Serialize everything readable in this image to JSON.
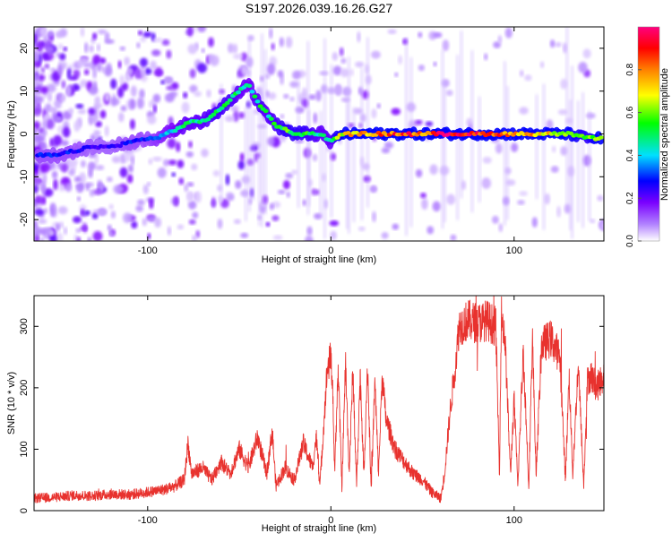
{
  "title": "S197.2026.039.16.26.G27",
  "chart_data": [
    {
      "type": "heatmap",
      "title": "S197.2026.039.16.26.G27",
      "xlabel": "Height of straight line (km)",
      "ylabel": "Frequency (Hz)",
      "xlim": [
        -162,
        149
      ],
      "ylim": [
        -25,
        25
      ],
      "xticks": [
        -100,
        0,
        100
      ],
      "yticks": [
        -20,
        -10,
        0,
        10,
        20
      ],
      "colorbar": {
        "label": "Normalized spectral amplitude",
        "range": [
          0,
          1
        ],
        "ticks": [
          0.0,
          0.2,
          0.4,
          0.6,
          0.8
        ],
        "tick_labels": [
          "0.0",
          "0.2",
          "0.4",
          "0.6",
          "0.8"
        ],
        "colors": [
          "#ffffff",
          "#7a00ff",
          "#0000ff",
          "#00e0ff",
          "#00ff00",
          "#ffff00",
          "#ff8000",
          "#ff0000",
          "#ff0080"
        ]
      },
      "ridge": {
        "x": [
          -160,
          -150,
          -140,
          -130,
          -120,
          -110,
          -100,
          -95,
          -90,
          -85,
          -80,
          -75,
          -70,
          -65,
          -60,
          -55,
          -50,
          -45,
          -42,
          -38,
          -35,
          -30,
          -25,
          -20,
          -15,
          -10,
          -5,
          0,
          5,
          10,
          20,
          30,
          40,
          50,
          60,
          70,
          80,
          90,
          100,
          110,
          120,
          130,
          140,
          148
        ],
        "y": [
          -5,
          -5,
          -4,
          -3,
          -3,
          -2,
          -1,
          -1,
          0,
          1,
          2,
          3,
          3,
          4,
          6,
          8,
          10,
          12,
          9,
          6,
          5,
          2,
          1,
          0,
          0,
          0,
          0,
          -2,
          0,
          0,
          0,
          0,
          0,
          0,
          0,
          0,
          0,
          0,
          0,
          0,
          0,
          0,
          -1,
          -1
        ],
        "amplitude": [
          0.3,
          0.3,
          0.3,
          0.25,
          0.25,
          0.3,
          0.3,
          0.35,
          0.4,
          0.45,
          0.5,
          0.5,
          0.5,
          0.55,
          0.55,
          0.55,
          0.5,
          0.45,
          0.5,
          0.55,
          0.5,
          0.55,
          0.6,
          0.6,
          0.6,
          0.55,
          0.5,
          0.5,
          0.7,
          0.8,
          0.85,
          0.9,
          0.95,
          0.9,
          0.95,
          0.98,
          0.98,
          0.9,
          0.85,
          0.8,
          0.75,
          0.7,
          0.6,
          0.75
        ]
      }
    },
    {
      "type": "line",
      "xlabel": "Height of straight line (km)",
      "ylabel": "SNR (10 * v/v)",
      "xlim": [
        -162,
        149
      ],
      "ylim": [
        0,
        350
      ],
      "xticks": [
        -100,
        0,
        100
      ],
      "yticks": [
        0,
        100,
        200,
        300
      ],
      "color": "#e8322e",
      "series": [
        {
          "name": "SNR",
          "x": [
            -162,
            -150,
            -140,
            -130,
            -120,
            -110,
            -100,
            -90,
            -85,
            -80,
            -78,
            -76,
            -70,
            -65,
            -60,
            -55,
            -50,
            -45,
            -40,
            -35,
            -32,
            -30,
            -25,
            -20,
            -15,
            -10,
            -8,
            -6,
            -2,
            0,
            1,
            2,
            4,
            6,
            8,
            10,
            12,
            14,
            16,
            18,
            20,
            22,
            24,
            26,
            28,
            30,
            35,
            40,
            45,
            50,
            55,
            60,
            62,
            65,
            68,
            70,
            75,
            80,
            85,
            90,
            92,
            93,
            95,
            98,
            100,
            102,
            105,
            108,
            110,
            112,
            115,
            120,
            125,
            128,
            130,
            132,
            135,
            138,
            140,
            142,
            145,
            149
          ],
          "y": [
            20,
            22,
            25,
            24,
            27,
            26,
            30,
            35,
            40,
            50,
            110,
            60,
            70,
            50,
            80,
            60,
            100,
            70,
            120,
            60,
            130,
            40,
            70,
            50,
            110,
            70,
            120,
            40,
            230,
            250,
            200,
            60,
            230,
            40,
            240,
            60,
            230,
            40,
            220,
            60,
            240,
            30,
            210,
            60,
            220,
            150,
            100,
            80,
            60,
            50,
            30,
            20,
            60,
            160,
            240,
            300,
            310,
            305,
            310,
            300,
            60,
            320,
            280,
            60,
            180,
            40,
            260,
            40,
            280,
            60,
            270,
            280,
            250,
            50,
            220,
            60,
            240,
            40,
            210,
            220,
            200,
            220
          ]
        }
      ]
    }
  ]
}
